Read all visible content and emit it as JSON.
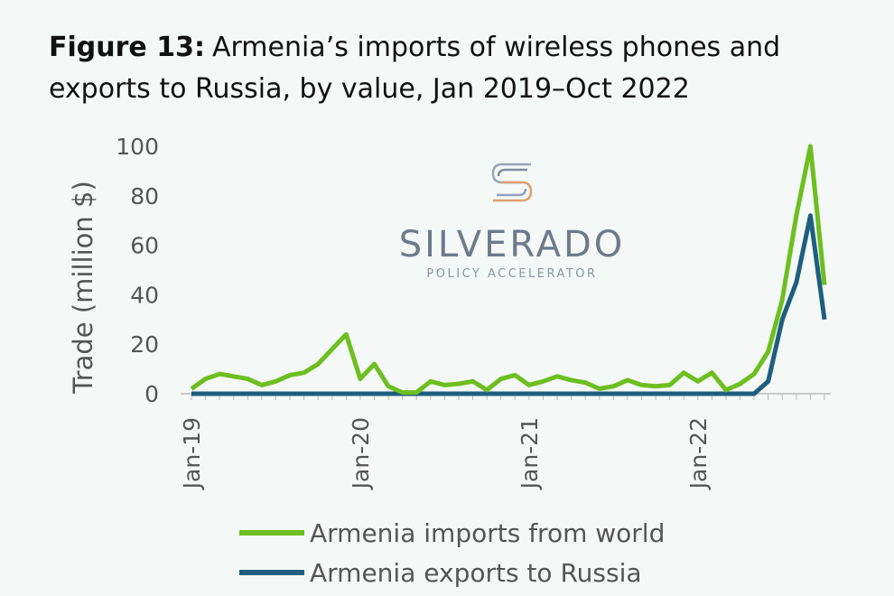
{
  "chart_data": {
    "type": "line",
    "title_label": "Figure 13:",
    "title": "Armenia’s imports of wireless phones and exports to Russia, by value, Jan 2019–Oct 2022",
    "watermark": {
      "name": "SILVERADO",
      "tagline": "POLICY ACCELERATOR"
    },
    "y_label": "Trade (million $)",
    "categories": [
      "Jan-19",
      null,
      null,
      null,
      null,
      null,
      null,
      null,
      null,
      null,
      null,
      null,
      "Jan-20",
      null,
      null,
      null,
      null,
      null,
      null,
      null,
      null,
      null,
      null,
      null,
      "Jan-21",
      null,
      null,
      null,
      null,
      null,
      null,
      null,
      null,
      null,
      null,
      null,
      "Jan-22",
      null,
      null,
      null,
      null,
      null,
      null,
      null,
      null,
      null
    ],
    "series": [
      {
        "name": "Armenia imports from world",
        "color": "#6cbf1f",
        "values": [
          2,
          6,
          8,
          7,
          6,
          3.5,
          5,
          7.5,
          8.5,
          12,
          18,
          24,
          6,
          12,
          3,
          0.5,
          0.5,
          5,
          3.5,
          4,
          5,
          1.5,
          6,
          7.5,
          3.5,
          5,
          7,
          5.5,
          4.5,
          2,
          3,
          5.5,
          3.5,
          3,
          3.5,
          8.5,
          5,
          8.5,
          1.5,
          4,
          8,
          17,
          38,
          72,
          100,
          44
        ]
      },
      {
        "name": "Armenia exports to Russia",
        "color": "#1e5e7e",
        "values": [
          0,
          0,
          0,
          0,
          0,
          0,
          0,
          0,
          0,
          0,
          0,
          0,
          0,
          0,
          0,
          0,
          0,
          0,
          0,
          0,
          0,
          0,
          0,
          0,
          0,
          0,
          0,
          0,
          0,
          0,
          0,
          0,
          0,
          0,
          0,
          0,
          0,
          0,
          0,
          0,
          0,
          5,
          30,
          45,
          72,
          30
        ]
      }
    ],
    "ylim": [
      0,
      100
    ],
    "yticks": [
      0,
      20,
      40,
      60,
      80,
      100
    ],
    "grid": false
  }
}
